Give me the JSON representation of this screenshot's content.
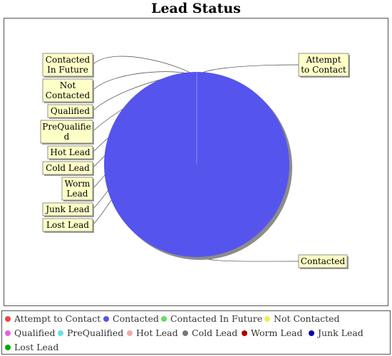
{
  "chart_data": {
    "type": "pie",
    "title": "Lead Status",
    "categories": [
      "Attempt to Contact",
      "Contacted",
      "Contacted In Future",
      "Not Contacted",
      "Qualified",
      "PreQualified",
      "Hot Lead",
      "Cold Lead",
      "Worm Lead",
      "Junk Lead",
      "Lost Lead"
    ],
    "values": [
      0,
      1,
      0,
      0,
      0,
      0,
      0,
      0,
      0,
      0,
      0
    ],
    "callout_labels": [
      [
        "Attempt",
        "to Contact"
      ],
      [
        "Contacted"
      ],
      [
        "Contacted",
        "In Future"
      ],
      [
        "Not",
        "Contacted"
      ],
      [
        "Qualified"
      ],
      [
        "PreQualifie",
        "d"
      ],
      [
        "Hot Lead"
      ],
      [
        "Cold Lead"
      ],
      [
        "Worm",
        "Lead"
      ],
      [
        "Junk Lead"
      ],
      [
        "Lost Lead"
      ]
    ],
    "colors": [
      "#ee4444",
      "#5555ee",
      "#66dd66",
      "#eeee55",
      "#dd66dd",
      "#66e0e0",
      "#eeaaaa",
      "#777777",
      "#aa0000",
      "#0000aa",
      "#00aa00"
    ],
    "legend_position": "bottom"
  }
}
